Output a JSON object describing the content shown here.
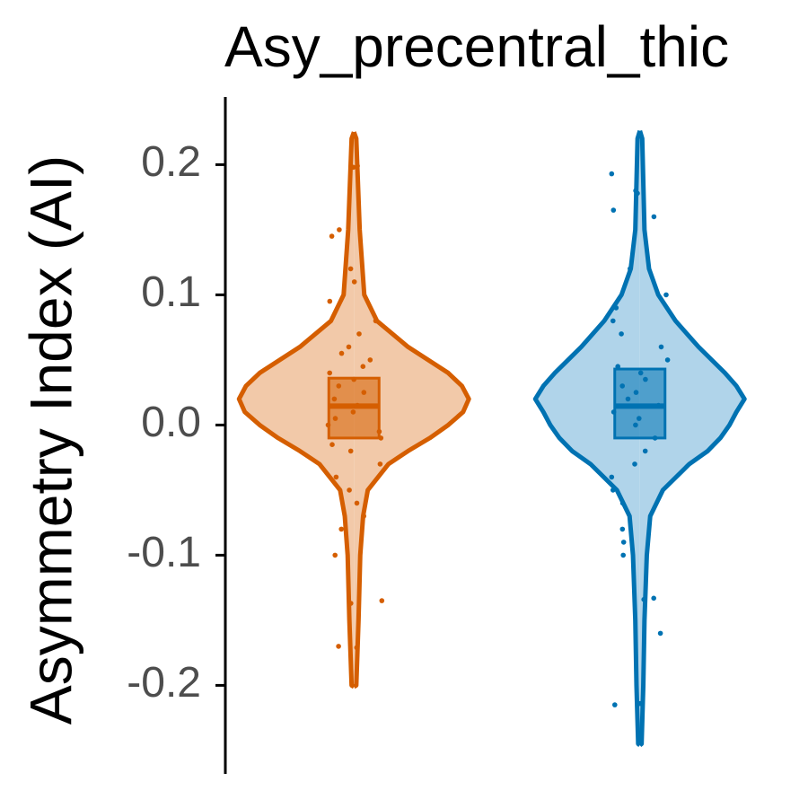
{
  "chart_data": {
    "type": "violin",
    "title": "Asy_precentral_thic",
    "y_label": "Asymmetry Index (AI)",
    "categories": [
      null,
      null
    ],
    "ylim": [
      -0.268,
      0.252
    ],
    "yticks": [
      -0.2,
      -0.1,
      {
        "value": 0,
        "label": "0.0"
      },
      0.1,
      0.2
    ],
    "series": [
      {
        "color": "#d55e00",
        "fill": "#f2c9a9",
        "violin_y": [
          0.225,
          0.22,
          0.15,
          0.1,
          0.08,
          0.06,
          0.04,
          0.03,
          0.02,
          0.01,
          0.0,
          -0.01,
          -0.02,
          -0.03,
          -0.05,
          -0.07,
          -0.1,
          -0.15,
          -0.2,
          -0.201
        ],
        "violin_density": [
          0,
          0.02,
          0.05,
          0.09,
          0.2,
          0.47,
          0.82,
          0.94,
          1.0,
          0.95,
          0.82,
          0.66,
          0.47,
          0.3,
          0.12,
          0.08,
          0.055,
          0.04,
          0.02,
          0
        ],
        "box": {
          "q1": -0.01,
          "median": 0.0145,
          "q3": 0.036
        },
        "values": [
          0.198,
          0.199,
          0.145,
          0.15,
          0.12,
          0.11,
          0.095,
          0.08,
          0.07,
          0.06,
          0.055,
          0.05,
          0.045,
          0.04,
          0.035,
          0.03,
          0.025,
          0.02,
          0.015,
          0.01,
          0.005,
          0.0,
          -0.005,
          -0.01,
          -0.015,
          -0.02,
          -0.03,
          -0.04,
          -0.05,
          -0.06,
          -0.07,
          -0.08,
          -0.1,
          -0.135,
          -0.137,
          -0.17,
          -0.171
        ]
      },
      {
        "color": "#0072b2",
        "fill": "#b0d4ea",
        "violin_y": [
          0.226,
          0.22,
          0.15,
          0.12,
          0.1,
          0.08,
          0.06,
          0.04,
          0.03,
          0.02,
          0.01,
          0.0,
          -0.01,
          -0.02,
          -0.03,
          -0.05,
          -0.07,
          -0.1,
          -0.15,
          -0.2,
          -0.245,
          -0.246
        ],
        "violin_density": [
          0,
          0.02,
          0.04,
          0.08,
          0.16,
          0.31,
          0.51,
          0.74,
          0.84,
          0.91,
          0.84,
          0.78,
          0.7,
          0.59,
          0.43,
          0.2,
          0.09,
          0.06,
          0.04,
          0.03,
          0.015,
          0
        ],
        "box": {
          "q1": -0.01,
          "median": 0.0145,
          "q3": 0.043
        },
        "values": [
          0.193,
          0.18,
          0.178,
          0.165,
          0.16,
          0.12,
          0.1,
          0.09,
          0.08,
          0.07,
          0.06,
          0.05,
          0.045,
          0.04,
          0.035,
          0.03,
          0.025,
          0.02,
          0.015,
          0.01,
          0.005,
          0.0,
          -0.01,
          -0.02,
          -0.03,
          -0.04,
          -0.05,
          -0.06,
          -0.08,
          -0.09,
          -0.1,
          -0.133,
          -0.134,
          -0.16,
          -0.215,
          -0.214
        ]
      }
    ]
  }
}
